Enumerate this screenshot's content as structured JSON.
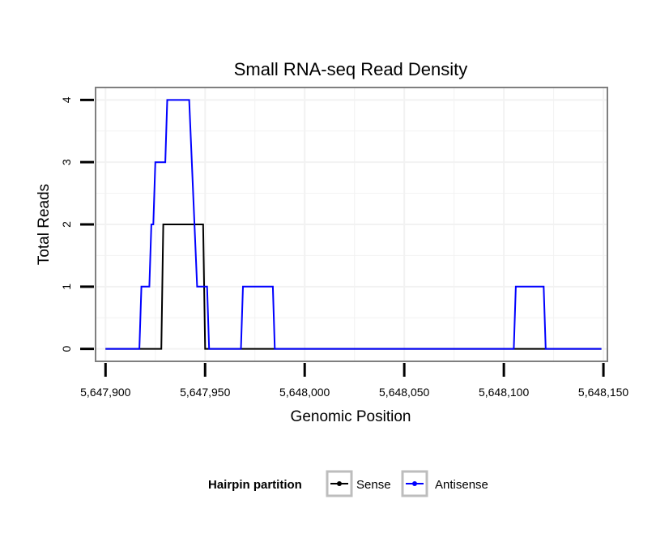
{
  "chart_data": {
    "type": "line",
    "title": "Small RNA-seq Read Density",
    "xlabel": "Genomic Position",
    "ylabel": "Total Reads",
    "xlim": [
      5647895,
      5648152
    ],
    "ylim": [
      -0.2,
      4.2
    ],
    "xticks": [
      5647900,
      5647950,
      5648000,
      5648050,
      5648100,
      5648150
    ],
    "xtick_labels": [
      "5,647,900",
      "5,647,950",
      "5,648,000",
      "5,648,050",
      "5,648,100",
      "5,648,150"
    ],
    "yticks": [
      0,
      1,
      2,
      3,
      4
    ],
    "ytick_labels": [
      "0",
      "1",
      "2",
      "3",
      "4"
    ],
    "grid": true,
    "legend": {
      "title": "Hairpin partition",
      "position": "bottom"
    },
    "series": [
      {
        "name": "Sense",
        "color": "#000000",
        "points": [
          [
            5647900,
            0
          ],
          [
            5647928,
            0
          ],
          [
            5647929,
            2
          ],
          [
            5647949,
            2
          ],
          [
            5647950,
            0
          ],
          [
            5648149,
            0
          ]
        ]
      },
      {
        "name": "Antisense",
        "color": "#0000ff",
        "points": [
          [
            5647900,
            0
          ],
          [
            5647917,
            0
          ],
          [
            5647918,
            1
          ],
          [
            5647922,
            1
          ],
          [
            5647923,
            2
          ],
          [
            5647924,
            2
          ],
          [
            5647925,
            3
          ],
          [
            5647930,
            3
          ],
          [
            5647931,
            4
          ],
          [
            5647942,
            4
          ],
          [
            5647946,
            1
          ],
          [
            5647951,
            1
          ],
          [
            5647952,
            0
          ],
          [
            5647968,
            0
          ],
          [
            5647969,
            1
          ],
          [
            5647984,
            1
          ],
          [
            5647985,
            0
          ],
          [
            5648105,
            0
          ],
          [
            5648106,
            1
          ],
          [
            5648120,
            1
          ],
          [
            5648121,
            0
          ],
          [
            5648149,
            0
          ]
        ]
      }
    ]
  }
}
